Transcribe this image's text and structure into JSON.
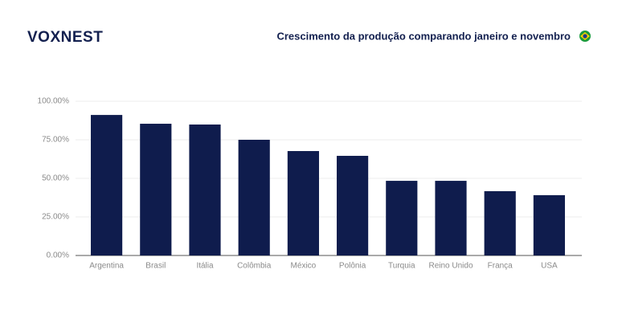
{
  "brand": "VOXNEST",
  "chart_data": {
    "type": "bar",
    "title": "Crescimento da produção comparando janeiro e novembro",
    "categories": [
      "Argentina",
      "Brasil",
      "Itália",
      "Colômbia",
      "México",
      "Polônia",
      "Turquia",
      "Reino Unido",
      "França",
      "USA"
    ],
    "values": [
      91.1,
      85.4,
      84.9,
      75,
      67.7,
      64.6,
      48.4,
      48.4,
      41.7,
      39.1
    ],
    "color": "#0f1c4d",
    "ylim": [
      0,
      100
    ],
    "yticks": [
      {
        "value": 0,
        "label": "0.00%"
      },
      {
        "value": 25,
        "label": "25.00%"
      },
      {
        "value": 50,
        "label": "50.00%"
      },
      {
        "value": 75,
        "label": "75.00%"
      },
      {
        "value": 100,
        "label": "100.00%"
      }
    ],
    "grid": true
  }
}
